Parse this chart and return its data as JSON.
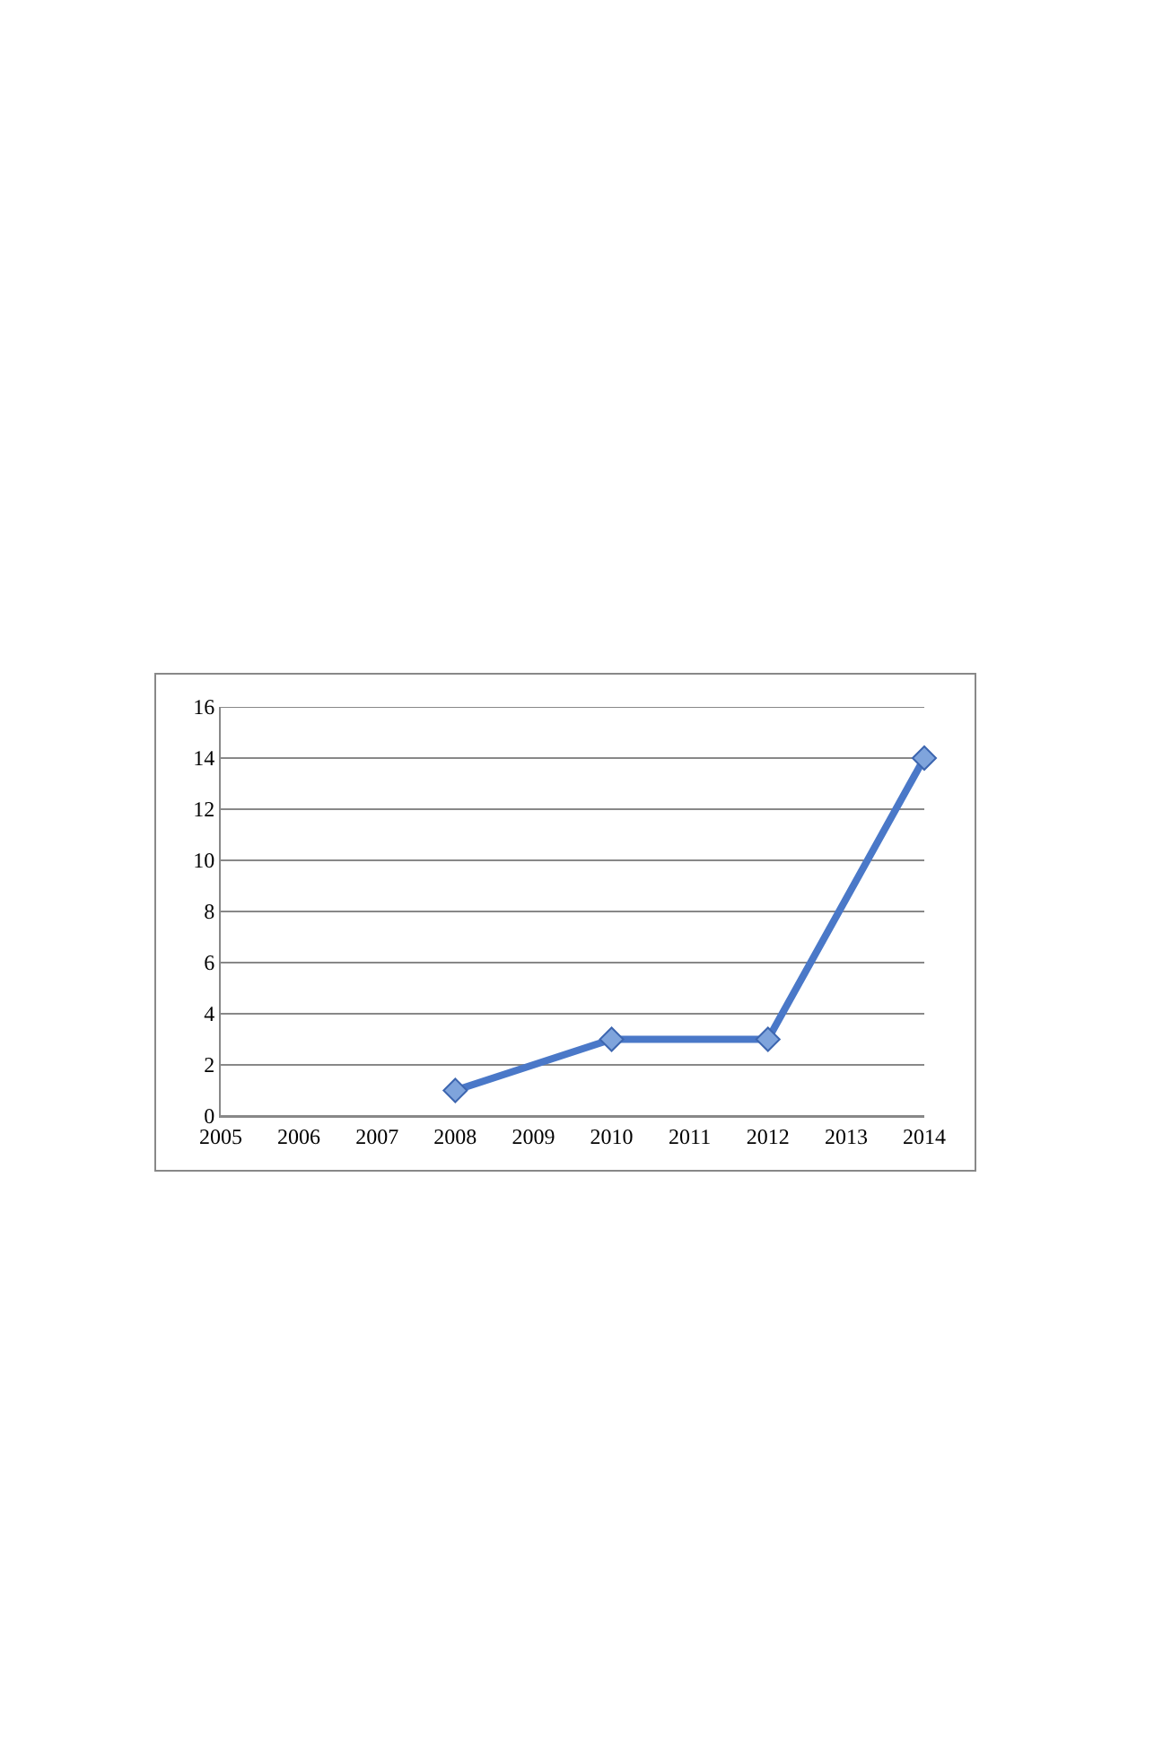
{
  "chart_data": {
    "type": "line",
    "x": [
      2008,
      2010,
      2012,
      2014
    ],
    "series": [
      {
        "color": "#4a78c8",
        "values": [
          1,
          3,
          3,
          14
        ]
      }
    ],
    "xlim": [
      2005,
      2014
    ],
    "xticks": [
      2005,
      2006,
      2007,
      2008,
      2009,
      2010,
      2011,
      2012,
      2013,
      2014
    ],
    "ylim": [
      0,
      16
    ],
    "yticks": [
      0,
      2,
      4,
      6,
      8,
      10,
      12,
      14,
      16
    ],
    "grid": "y",
    "marker": "diamond",
    "line_style": "solid"
  }
}
